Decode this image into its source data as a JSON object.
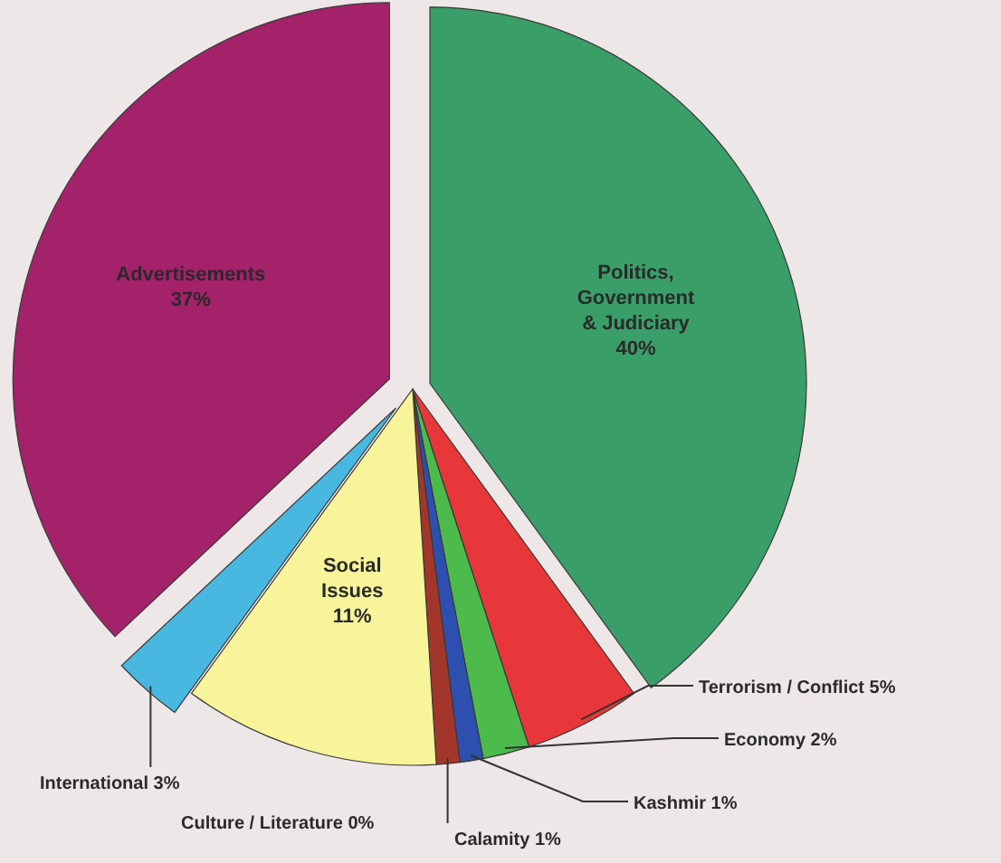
{
  "chart_data": {
    "type": "pie",
    "categories": [
      "Politics, Government & Judiciary",
      "Terrorism / Conflict",
      "Economy",
      "Kashmir",
      "Calamity",
      "Culture / Literature",
      "Social Issues",
      "International",
      "Advertisements"
    ],
    "values": [
      40,
      5,
      2,
      1,
      1,
      0,
      11,
      3,
      37
    ],
    "value_labels": [
      "40%",
      "5%",
      "2%",
      "1%",
      "1%",
      "0%",
      "11%",
      "3%",
      "37%"
    ],
    "colors": [
      "#3a9e68",
      "#e8373a",
      "#4cbb4c",
      "#2c4fb0",
      "#a3362a",
      null,
      "#f7f49a",
      "#48b8e0",
      "#a3226a"
    ]
  }
}
